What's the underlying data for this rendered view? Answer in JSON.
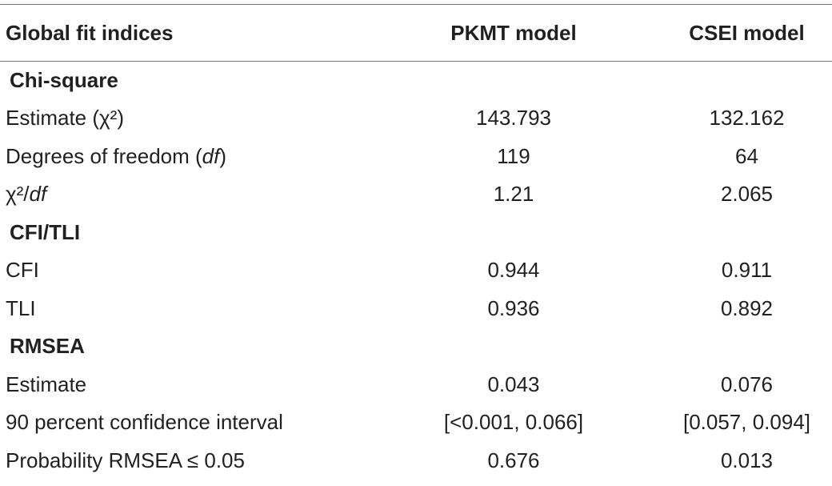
{
  "header": [
    "Global fit indices",
    "PKMT model",
    "CSEI model"
  ],
  "sections": [
    {
      "title": "Chi-square",
      "rows": [
        {
          "label": "Estimate (χ²)",
          "values": [
            "143.793",
            "132.162"
          ]
        },
        {
          "label": [
            "Degrees of freedom (",
            "df",
            ")"
          ],
          "values": [
            "119",
            "64"
          ]
        },
        {
          "label": [
            "χ²/",
            "df"
          ],
          "values": [
            "1.21",
            "2.065"
          ]
        }
      ]
    },
    {
      "title": "CFI/TLI",
      "rows": [
        {
          "label": "CFI",
          "values": [
            "0.944",
            "0.911"
          ]
        },
        {
          "label": "TLI",
          "values": [
            "0.936",
            "0.892"
          ]
        }
      ]
    },
    {
      "title": "RMSEA",
      "rows": [
        {
          "label": "Estimate",
          "values": [
            "0.043",
            "0.076"
          ]
        },
        {
          "label": "90 percent confidence interval",
          "values": [
            "[<0.001, 0.066]",
            "[0.057, 0.094]"
          ]
        },
        {
          "label": "Probability RMSEA ≤ 0.05",
          "values": [
            "0.676",
            "0.013"
          ]
        }
      ]
    }
  ]
}
